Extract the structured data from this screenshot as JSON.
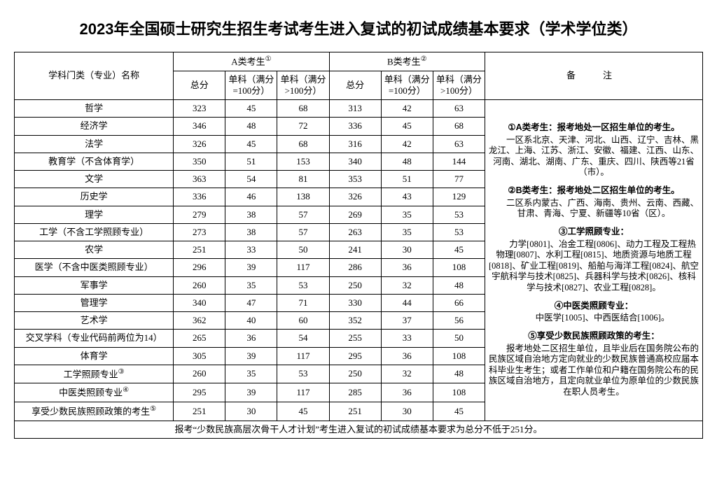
{
  "title": "2023年全国硕士研究生招生考试考生进入复试的初试成绩基本要求（学术学位类）",
  "headers": {
    "category": "学科门类（专业）名称",
    "groupA": "A类考生",
    "groupB": "B类考生",
    "supA": "①",
    "supB": "②",
    "total": "总分",
    "sub100": "单科（满分=100分）",
    "subGt100": "单科（满分>100分）",
    "remarks": "备　注"
  },
  "rows": [
    {
      "name": "哲学",
      "a": [
        323,
        45,
        68
      ],
      "b": [
        313,
        42,
        63
      ]
    },
    {
      "name": "经济学",
      "a": [
        346,
        48,
        72
      ],
      "b": [
        336,
        45,
        68
      ]
    },
    {
      "name": "法学",
      "a": [
        326,
        45,
        68
      ],
      "b": [
        316,
        42,
        63
      ]
    },
    {
      "name": "教育学（不含体育学）",
      "a": [
        350,
        51,
        153
      ],
      "b": [
        340,
        48,
        144
      ]
    },
    {
      "name": "文学",
      "a": [
        363,
        54,
        81
      ],
      "b": [
        353,
        51,
        77
      ]
    },
    {
      "name": "历史学",
      "a": [
        336,
        46,
        138
      ],
      "b": [
        326,
        43,
        129
      ]
    },
    {
      "name": "理学",
      "a": [
        279,
        38,
        57
      ],
      "b": [
        269,
        35,
        53
      ]
    },
    {
      "name": "工学（不含工学照顾专业）",
      "a": [
        273,
        38,
        57
      ],
      "b": [
        263,
        35,
        53
      ]
    },
    {
      "name": "农学",
      "a": [
        251,
        33,
        50
      ],
      "b": [
        241,
        30,
        45
      ]
    },
    {
      "name": "医学（不含中医类照顾专业）",
      "a": [
        296,
        39,
        117
      ],
      "b": [
        286,
        36,
        108
      ]
    },
    {
      "name": "军事学",
      "a": [
        260,
        35,
        53
      ],
      "b": [
        250,
        32,
        48
      ]
    },
    {
      "name": "管理学",
      "a": [
        340,
        47,
        71
      ],
      "b": [
        330,
        44,
        66
      ]
    },
    {
      "name": "艺术学",
      "a": [
        362,
        40,
        60
      ],
      "b": [
        352,
        37,
        56
      ]
    },
    {
      "name": "交叉学科（专业代码前两位为14）",
      "a": [
        265,
        36,
        54
      ],
      "b": [
        255,
        33,
        50
      ]
    },
    {
      "name": "体育学",
      "a": [
        305,
        39,
        117
      ],
      "b": [
        295,
        36,
        108
      ]
    },
    {
      "name": "工学照顾专业",
      "sup": "③",
      "a": [
        260,
        35,
        53
      ],
      "b": [
        250,
        32,
        48
      ]
    },
    {
      "name": "中医类照顾专业",
      "sup": "④",
      "a": [
        295,
        39,
        117
      ],
      "b": [
        285,
        36,
        108
      ]
    },
    {
      "name": "享受少数民族照顾政策的考生",
      "sup": "⑤",
      "a": [
        251,
        30,
        45
      ],
      "b": [
        251,
        30,
        45
      ]
    }
  ],
  "footnote": "报考“少数民族高层次骨干人才计划”考生进入复试的初试成绩基本要求为总分不低于251分。",
  "remarks": {
    "r1h": "①A类考生：报考地处一区招生单位的考生。",
    "r1b": "一区系北京、天津、河北、山西、辽宁、吉林、黑龙江、上海、江苏、浙江、安徽、福建、江西、山东、河南、湖北、湖南、广东、重庆、四川、陕西等21省（市）。",
    "r2h": "②B类考生：报考地处二区招生单位的考生。",
    "r2b": "二区系内蒙古、广西、海南、贵州、云南、西藏、甘肃、青海、宁夏、新疆等10省（区）。",
    "r3h": "③工学照顾专业：",
    "r3b": "力学[0801]、冶金工程[0806]、动力工程及工程热物理[0807]、水利工程[0815]、地质资源与地质工程[0818]、矿业工程[0819]、船舶与海洋工程[0824]、航空宇航科学与技术[0825]、兵器科学与技术[0826]、核科学与技术[0827]、农业工程[0828]。",
    "r4h": "④中医类照顾专业：",
    "r4b": "中医学[1005]、中西医结合[1006]。",
    "r5h": "⑤享受少数民族照顾政策的考生：",
    "r5b": "报考地处二区招生单位，且毕业后在国务院公布的民族区域自治地方定向就业的少数民族普通高校应届本科毕业生考生；或者工作单位和户籍在国务院公布的民族区域自治地方，且定向就业单位为原单位的少数民族在职人员考生。"
  }
}
